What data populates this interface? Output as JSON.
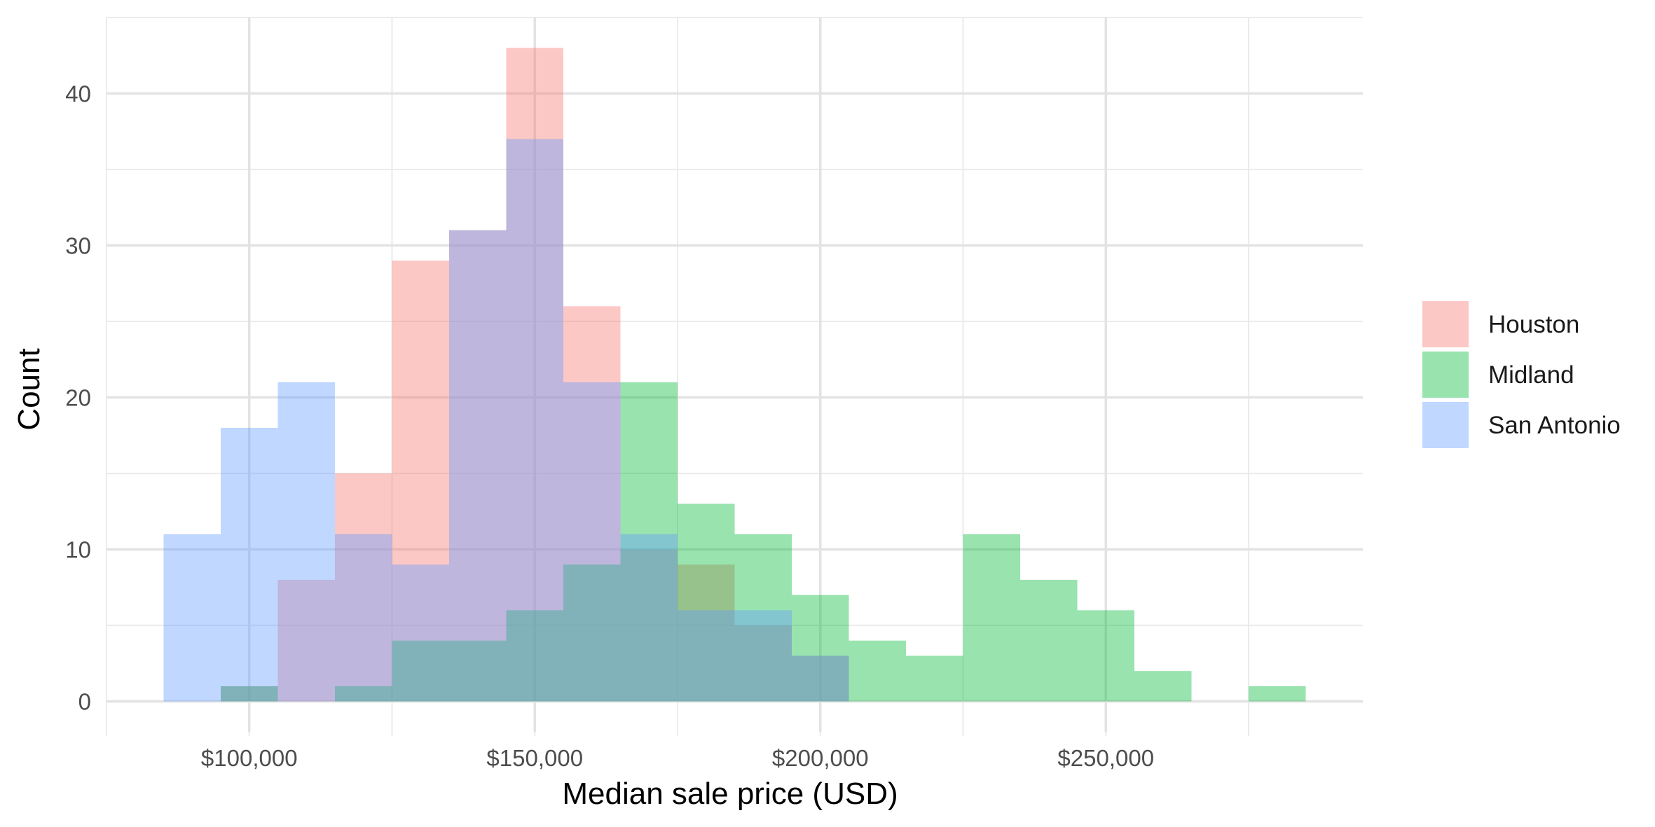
{
  "chart_data": {
    "type": "histogram",
    "xlabel": "Median sale price (USD)",
    "ylabel": "Count",
    "xlim": [
      75000,
      295000
    ],
    "ylim": [
      -2,
      45
    ],
    "x_ticks": [
      {
        "value": 100000,
        "label": "$100,000"
      },
      {
        "value": 150000,
        "label": "$150,000"
      },
      {
        "value": 200000,
        "label": "$200,000"
      },
      {
        "value": 250000,
        "label": "$250,000"
      }
    ],
    "y_ticks": [
      {
        "value": 0,
        "label": "0"
      },
      {
        "value": 10,
        "label": "10"
      },
      {
        "value": 20,
        "label": "20"
      },
      {
        "value": 30,
        "label": "30"
      },
      {
        "value": 40,
        "label": "40"
      }
    ],
    "bin_width": 10000,
    "grid": true,
    "legend_position": "right",
    "series": [
      {
        "name": "Houston",
        "color": "#F8766D",
        "bins": [
          {
            "x0": 95000,
            "x1": 105000,
            "count": 1
          },
          {
            "x0": 105000,
            "x1": 115000,
            "count": 8
          },
          {
            "x0": 115000,
            "x1": 125000,
            "count": 15
          },
          {
            "x0": 125000,
            "x1": 135000,
            "count": 29
          },
          {
            "x0": 135000,
            "x1": 145000,
            "count": 31
          },
          {
            "x0": 145000,
            "x1": 155000,
            "count": 43
          },
          {
            "x0": 155000,
            "x1": 165000,
            "count": 26
          },
          {
            "x0": 165000,
            "x1": 175000,
            "count": 10
          },
          {
            "x0": 175000,
            "x1": 185000,
            "count": 9
          },
          {
            "x0": 185000,
            "x1": 195000,
            "count": 5
          },
          {
            "x0": 195000,
            "x1": 205000,
            "count": 3
          }
        ]
      },
      {
        "name": "Midland",
        "color": "#00BA38",
        "bins": [
          {
            "x0": 95000,
            "x1": 105000,
            "count": 1
          },
          {
            "x0": 115000,
            "x1": 125000,
            "count": 1
          },
          {
            "x0": 125000,
            "x1": 135000,
            "count": 4
          },
          {
            "x0": 135000,
            "x1": 145000,
            "count": 4
          },
          {
            "x0": 145000,
            "x1": 155000,
            "count": 6
          },
          {
            "x0": 155000,
            "x1": 165000,
            "count": 9
          },
          {
            "x0": 165000,
            "x1": 175000,
            "count": 21
          },
          {
            "x0": 175000,
            "x1": 185000,
            "count": 13
          },
          {
            "x0": 185000,
            "x1": 195000,
            "count": 11
          },
          {
            "x0": 195000,
            "x1": 205000,
            "count": 7
          },
          {
            "x0": 205000,
            "x1": 215000,
            "count": 4
          },
          {
            "x0": 215000,
            "x1": 225000,
            "count": 3
          },
          {
            "x0": 225000,
            "x1": 235000,
            "count": 11
          },
          {
            "x0": 235000,
            "x1": 245000,
            "count": 8
          },
          {
            "x0": 245000,
            "x1": 255000,
            "count": 6
          },
          {
            "x0": 255000,
            "x1": 265000,
            "count": 2
          },
          {
            "x0": 275000,
            "x1": 285000,
            "count": 1
          }
        ]
      },
      {
        "name": "San Antonio",
        "color": "#619CFF",
        "bins": [
          {
            "x0": 85000,
            "x1": 95000,
            "count": 11
          },
          {
            "x0": 95000,
            "x1": 105000,
            "count": 18
          },
          {
            "x0": 105000,
            "x1": 115000,
            "count": 21
          },
          {
            "x0": 115000,
            "x1": 125000,
            "count": 11
          },
          {
            "x0": 125000,
            "x1": 135000,
            "count": 9
          },
          {
            "x0": 135000,
            "x1": 145000,
            "count": 31
          },
          {
            "x0": 145000,
            "x1": 155000,
            "count": 37
          },
          {
            "x0": 155000,
            "x1": 165000,
            "count": 21
          },
          {
            "x0": 165000,
            "x1": 175000,
            "count": 11
          },
          {
            "x0": 175000,
            "x1": 185000,
            "count": 6
          },
          {
            "x0": 185000,
            "x1": 195000,
            "count": 6
          },
          {
            "x0": 195000,
            "x1": 205000,
            "count": 3
          }
        ]
      }
    ]
  }
}
